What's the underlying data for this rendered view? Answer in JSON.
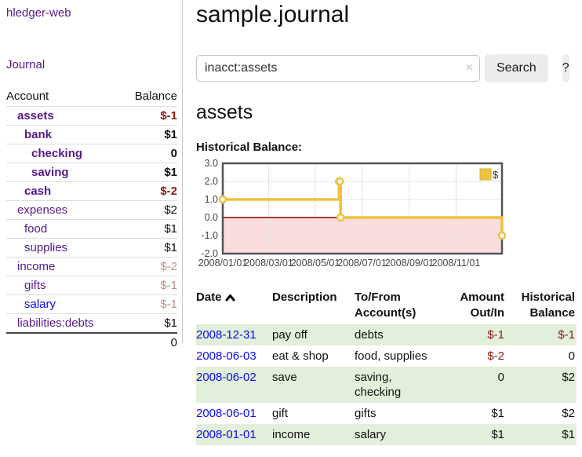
{
  "app": {
    "brand": "hledger-web"
  },
  "sidebar": {
    "nav": {
      "journal_label": "Journal"
    },
    "accounts_table": {
      "col_account": "Account",
      "col_balance": "Balance",
      "rows": [
        {
          "account": "assets",
          "balance": "$-1",
          "depth": 1,
          "bold": true,
          "balance_tone": "neg",
          "link_color": "purple"
        },
        {
          "account": "bank",
          "balance": "$1",
          "depth": 2,
          "bold": true,
          "balance_tone": "pos",
          "link_color": "purple"
        },
        {
          "account": "checking",
          "balance": "0",
          "depth": 3,
          "bold": true,
          "balance_tone": "pos",
          "link_color": "purple"
        },
        {
          "account": "saving",
          "balance": "$1",
          "depth": 3,
          "bold": true,
          "balance_tone": "pos",
          "link_color": "purple"
        },
        {
          "account": "cash",
          "balance": "$-2",
          "depth": 2,
          "bold": true,
          "balance_tone": "neg",
          "link_color": "purple"
        },
        {
          "account": "expenses",
          "balance": "$2",
          "depth": 1,
          "bold": false,
          "balance_tone": "pos",
          "link_color": "purple"
        },
        {
          "account": "food",
          "balance": "$1",
          "depth": 2,
          "bold": false,
          "balance_tone": "pos",
          "link_color": "purple"
        },
        {
          "account": "supplies",
          "balance": "$1",
          "depth": 2,
          "bold": false,
          "balance_tone": "pos",
          "link_color": "purple"
        },
        {
          "account": "income",
          "balance": "$-2",
          "depth": 1,
          "bold": false,
          "balance_tone": "neg-pale",
          "link_color": "purple"
        },
        {
          "account": "gifts",
          "balance": "$-1",
          "depth": 2,
          "bold": false,
          "balance_tone": "neg-pale",
          "link_color": "purple"
        },
        {
          "account": "salary",
          "balance": "$-1",
          "depth": 2,
          "bold": false,
          "balance_tone": "neg-pale",
          "link_color": "blue"
        },
        {
          "account": "liabilities:debts",
          "balance": "$1",
          "depth": 1,
          "bold": false,
          "balance_tone": "pos",
          "link_color": "purple"
        }
      ],
      "total": "0"
    }
  },
  "main": {
    "title": "sample.journal",
    "search": {
      "value": "inacct:assets",
      "clear_icon": "×",
      "button_label": "Search",
      "help_label": "?"
    },
    "account_heading": "assets",
    "chart_label": "Historical Balance:"
  },
  "chart_data": {
    "type": "line",
    "title": "Historical Balance",
    "step": true,
    "series": [
      {
        "name": "$",
        "color": "#edc240",
        "marker_border": "#dcae2c",
        "points": [
          [
            "2008-01-01",
            1
          ],
          [
            "2008-06-01",
            2
          ],
          [
            "2008-06-02",
            2
          ],
          [
            "2008-06-03",
            0
          ],
          [
            "2008-12-31",
            -1
          ]
        ]
      }
    ],
    "x_range": [
      "2008-01-01",
      "2008-12-31"
    ],
    "x_ticks": [
      {
        "date": "2008-01-01",
        "label": "2008/01/01"
      },
      {
        "date": "2008-03-01",
        "label": "2008/03/01"
      },
      {
        "date": "2008-05-01",
        "label": "2008/05/01"
      },
      {
        "date": "2008-07-01",
        "label": "2008/07/01"
      },
      {
        "date": "2008-09-01",
        "label": "2008/09/01"
      },
      {
        "date": "2008-11-01",
        "label": "2008/11/01"
      }
    ],
    "y_ticks": [
      "3.0",
      "2.0",
      "1.0",
      "0.0",
      "-1.0",
      "-2.0"
    ],
    "ylim": [
      -2,
      3
    ],
    "grid": true,
    "legend": {
      "label": "$",
      "position": "top-right"
    },
    "colors": {
      "negative_region": "#fbdcdc",
      "zero_line": "#8b0000",
      "gridline": "#e4e4e4",
      "border": "#545454",
      "tick_text": "#444444"
    }
  },
  "register": {
    "headers": {
      "date": "Date",
      "description": "Description",
      "accounts": "To/From\nAccount(s)",
      "amount": "Amount\nOut/In",
      "balance": "Historical\nBalance"
    },
    "rows": [
      {
        "date": "2008-12-31",
        "description": "pay off",
        "accounts": "debts",
        "amount": "$-1",
        "amount_tone": "neg",
        "balance": "$-1",
        "balance_tone": "neg"
      },
      {
        "date": "2008-06-03",
        "description": "eat & shop",
        "accounts": "food, supplies",
        "amount": "$-2",
        "amount_tone": "neg",
        "balance": "0",
        "balance_tone": "pos"
      },
      {
        "date": "2008-06-02",
        "description": "save",
        "accounts": "saving,\nchecking",
        "amount": "0",
        "amount_tone": "pos",
        "balance": "$2",
        "balance_tone": "pos"
      },
      {
        "date": "2008-06-01",
        "description": "gift",
        "accounts": "gifts",
        "amount": "$1",
        "amount_tone": "pos",
        "balance": "$2",
        "balance_tone": "pos"
      },
      {
        "date": "2008-01-01",
        "description": "income",
        "accounts": "salary",
        "amount": "$1",
        "amount_tone": "pos",
        "balance": "$1",
        "balance_tone": "pos"
      }
    ]
  }
}
